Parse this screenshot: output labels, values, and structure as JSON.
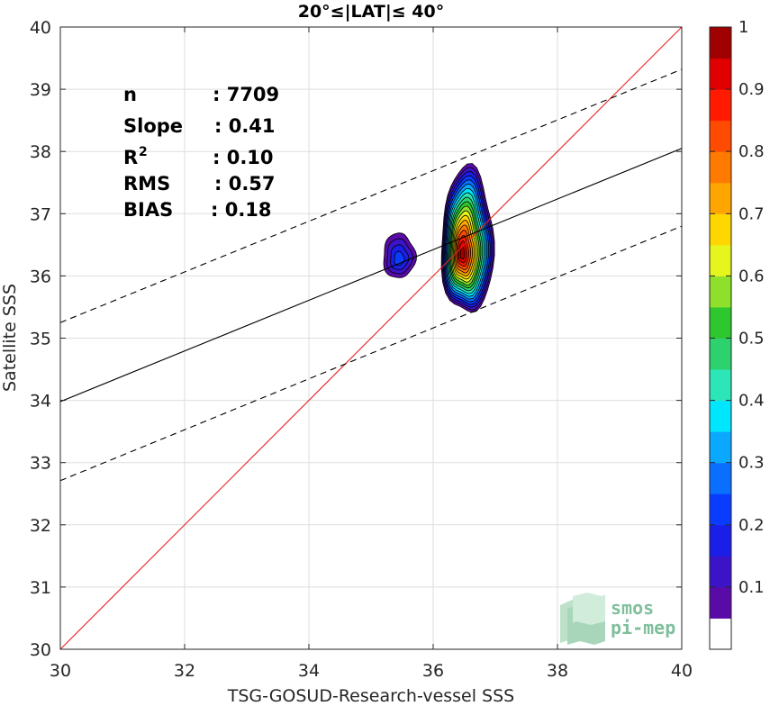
{
  "chart_data": {
    "type": "heatmap",
    "title": "20°≤|LAT|≤ 40°",
    "xlabel": "TSG-GOSUD-Research-vessel SSS",
    "ylabel": "Satellite SSS",
    "xlim": [
      30,
      40
    ],
    "ylim": [
      30,
      40
    ],
    "xticks": [
      "30",
      "32",
      "34",
      "36",
      "38",
      "40"
    ],
    "yticks": [
      "30",
      "31",
      "32",
      "33",
      "34",
      "35",
      "36",
      "37",
      "38",
      "39",
      "40"
    ],
    "grid": true,
    "stats": [
      {
        "label": "n",
        "value": ": 7709"
      },
      {
        "label": "Slope",
        "value": ": 0.41"
      },
      {
        "label": "R",
        "sup": "2",
        "value": ": 0.10"
      },
      {
        "label": "RMS",
        "value": ": 0.57"
      },
      {
        "label": "BIAS",
        "value": ": 0.18"
      }
    ],
    "lines": {
      "identity": {
        "x": [
          30,
          40
        ],
        "y": [
          30,
          40
        ],
        "color": "#e8231f"
      },
      "fit": {
        "x": [
          30,
          40
        ],
        "y": [
          33.98,
          38.05
        ],
        "color": "#000000"
      },
      "fit_upper": {
        "x": [
          30,
          40
        ],
        "y": [
          35.25,
          39.32
        ],
        "color": "#000000",
        "style": "dashed"
      },
      "fit_lower": {
        "x": [
          30,
          40
        ],
        "y": [
          32.71,
          36.8
        ],
        "color": "#000000",
        "style": "dashed"
      }
    },
    "density_blobs": [
      {
        "cx": 36.55,
        "cy": 36.55,
        "rx": 0.42,
        "ry": 1.18,
        "peak": 1.0
      },
      {
        "cx": 35.45,
        "cy": 36.32,
        "rx": 0.26,
        "ry": 0.36,
        "peak": 0.2
      }
    ],
    "colorbar": {
      "range": [
        0,
        1
      ],
      "ticks": [
        "0.1",
        "0.2",
        "0.3",
        "0.4",
        "0.5",
        "0.6",
        "0.7",
        "0.8",
        "0.9",
        "1"
      ],
      "tick_values": [
        0.1,
        0.2,
        0.3,
        0.4,
        0.5,
        0.6,
        0.7,
        0.8,
        0.9,
        1.0
      ],
      "colors": [
        "#ffffff",
        "#5a0aa6",
        "#3b14c8",
        "#1a1ee6",
        "#0a3cff",
        "#0a6eff",
        "#0aa8ff",
        "#00e6ff",
        "#2de6b8",
        "#2dd26e",
        "#2ec82e",
        "#8fe02b",
        "#e6f51e",
        "#ffd700",
        "#ffa500",
        "#ff7a00",
        "#ff4b00",
        "#ff1a00",
        "#e00000",
        "#a00000"
      ]
    },
    "logo": {
      "line1": "smos",
      "line2": "pi-mep"
    }
  }
}
